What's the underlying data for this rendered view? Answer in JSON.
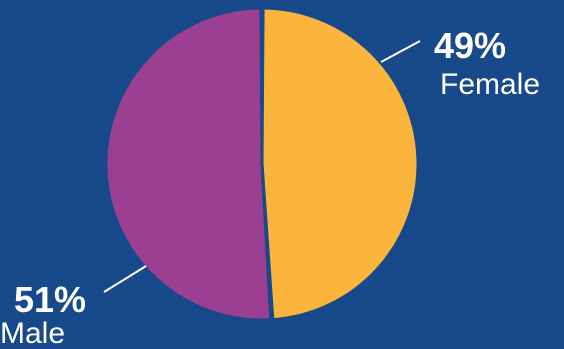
{
  "chart_data": {
    "type": "pie",
    "title": "",
    "slices": [
      {
        "label": "Female",
        "value": 49,
        "value_label": "49%",
        "color": "#fcb53c"
      },
      {
        "label": "Male",
        "value": 51,
        "value_label": "51%",
        "color": "#9b3f93"
      }
    ],
    "legend": "none",
    "background_color": "#18498a",
    "separator_color": "#18498a"
  }
}
